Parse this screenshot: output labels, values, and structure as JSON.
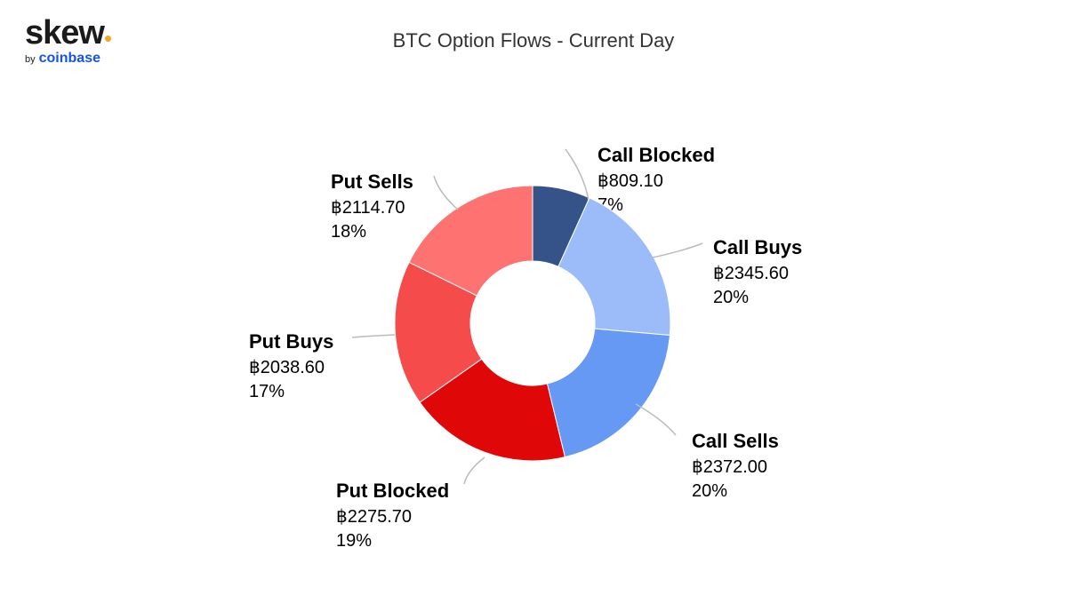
{
  "brand": {
    "name": "skew",
    "by": "by",
    "partner": "coinbase",
    "dot_color": "#f6a623",
    "partner_color": "#1652f0"
  },
  "chart_data": {
    "type": "pie",
    "title": "BTC Option Flows - Current Day",
    "donut": true,
    "slices": [
      {
        "label": "Call Blocked",
        "value": 809.1,
        "value_text": "฿809.10",
        "percent_text": "7%",
        "color": "#355389"
      },
      {
        "label": "Call Buys",
        "value": 2345.6,
        "value_text": "฿2345.60",
        "percent_text": "20%",
        "color": "#9bbcf8"
      },
      {
        "label": "Call Sells",
        "value": 2372.0,
        "value_text": "฿2372.00",
        "percent_text": "20%",
        "color": "#6599f3"
      },
      {
        "label": "Put Blocked",
        "value": 2275.7,
        "value_text": "฿2275.70",
        "percent_text": "19%",
        "color": "#df0707"
      },
      {
        "label": "Put Buys",
        "value": 2038.6,
        "value_text": "฿2038.60",
        "percent_text": "17%",
        "color": "#f64b4b"
      },
      {
        "label": "Put Sells",
        "value": 2114.7,
        "value_text": "฿2114.70",
        "percent_text": "18%",
        "color": "#fe7272"
      }
    ]
  }
}
